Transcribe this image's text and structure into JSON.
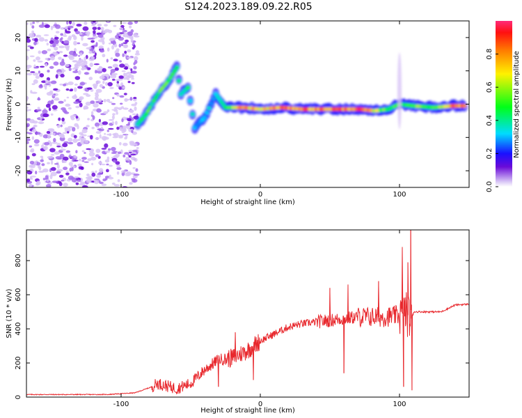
{
  "figure": {
    "title": "S124.2023.189.09.22.R05"
  },
  "chart_data": [
    {
      "type": "heatmap",
      "name": "spectrogram",
      "xlabel": "Height of straight line (km)",
      "ylabel": "Frequency (Hz)",
      "xlim": [
        -168,
        150
      ],
      "ylim": [
        -25,
        25
      ],
      "xticks": [
        -100,
        0,
        100
      ],
      "yticks": [
        -20,
        -10,
        0,
        10,
        20
      ],
      "noise_region_x": [
        -168,
        -88
      ],
      "ridge": [
        {
          "x": -88,
          "y": -6,
          "a": 0.45
        },
        {
          "x": -82,
          "y": -3,
          "a": 0.55
        },
        {
          "x": -78,
          "y": 0,
          "a": 0.5
        },
        {
          "x": -72,
          "y": 4,
          "a": 0.55
        },
        {
          "x": -66,
          "y": 7,
          "a": 0.6
        },
        {
          "x": -60,
          "y": 11,
          "a": 0.55
        },
        {
          "x": -57,
          "y": 3,
          "a": 0.45
        },
        {
          "x": -52,
          "y": 5,
          "a": 0.5
        },
        {
          "x": -47,
          "y": -7,
          "a": 0.3
        },
        {
          "x": -40,
          "y": -4,
          "a": 0.35
        },
        {
          "x": -32,
          "y": 3,
          "a": 0.35
        },
        {
          "x": -25,
          "y": -1,
          "a": 0.45
        },
        {
          "x": -12,
          "y": -1,
          "a": 0.9
        },
        {
          "x": 0,
          "y": -1.5,
          "a": 0.75
        },
        {
          "x": 15,
          "y": -1,
          "a": 0.9
        },
        {
          "x": 30,
          "y": -1.5,
          "a": 0.92
        },
        {
          "x": 45,
          "y": -1.5,
          "a": 0.88
        },
        {
          "x": 60,
          "y": -1.5,
          "a": 0.93
        },
        {
          "x": 72,
          "y": -1.5,
          "a": 0.95
        },
        {
          "x": 82,
          "y": -2,
          "a": 0.7
        },
        {
          "x": 92,
          "y": -1.5,
          "a": 0.55
        },
        {
          "x": 100,
          "y": 0,
          "a": 0.5
        },
        {
          "x": 110,
          "y": -0.5,
          "a": 0.6
        },
        {
          "x": 125,
          "y": -1,
          "a": 0.55
        },
        {
          "x": 138,
          "y": -0.5,
          "a": 0.95
        },
        {
          "x": 148,
          "y": -0.5,
          "a": 0.9
        }
      ],
      "colorbar": {
        "label": "Normalized spectral amplitude",
        "range": [
          0.0,
          1.0
        ],
        "ticks": [
          "0.0",
          "0.2",
          "0.4",
          "0.6",
          "0.8"
        ],
        "tick_values": [
          0.0,
          0.2,
          0.4,
          0.6,
          0.8
        ]
      }
    },
    {
      "type": "line",
      "name": "snr",
      "xlabel": "Height of straight line (km)",
      "ylabel": "SNR (10 * v/v)",
      "xlim": [
        -168,
        150
      ],
      "ylim": [
        0,
        980
      ],
      "xticks": [
        -100,
        0,
        100
      ],
      "yticks": [
        0,
        200,
        400,
        600,
        800
      ],
      "series_color": "#e8282d",
      "x": [
        -168,
        -140,
        -110,
        -90,
        -78,
        -74,
        -60,
        -50,
        -40,
        -30,
        -20,
        -10,
        0,
        10,
        20,
        30,
        40,
        50,
        60,
        70,
        80,
        90,
        100,
        104,
        108,
        110,
        120,
        130,
        140,
        150
      ],
      "y": [
        15,
        15,
        15,
        25,
        60,
        80,
        50,
        80,
        160,
        220,
        230,
        270,
        330,
        370,
        410,
        430,
        440,
        450,
        460,
        470,
        470,
        470,
        480,
        500,
        460,
        500,
        500,
        500,
        540,
        545
      ],
      "spikes": [
        {
          "x": -30,
          "y": 60
        },
        {
          "x": -18,
          "y": 380
        },
        {
          "x": -5,
          "y": 100
        },
        {
          "x": 50,
          "y": 640
        },
        {
          "x": 60,
          "y": 140
        },
        {
          "x": 63,
          "y": 660
        },
        {
          "x": 85,
          "y": 680
        },
        {
          "x": 102,
          "y": 880
        },
        {
          "x": 103,
          "y": 60
        },
        {
          "x": 106,
          "y": 790
        },
        {
          "x": 108,
          "y": 980
        },
        {
          "x": 109,
          "y": 40
        }
      ]
    }
  ]
}
